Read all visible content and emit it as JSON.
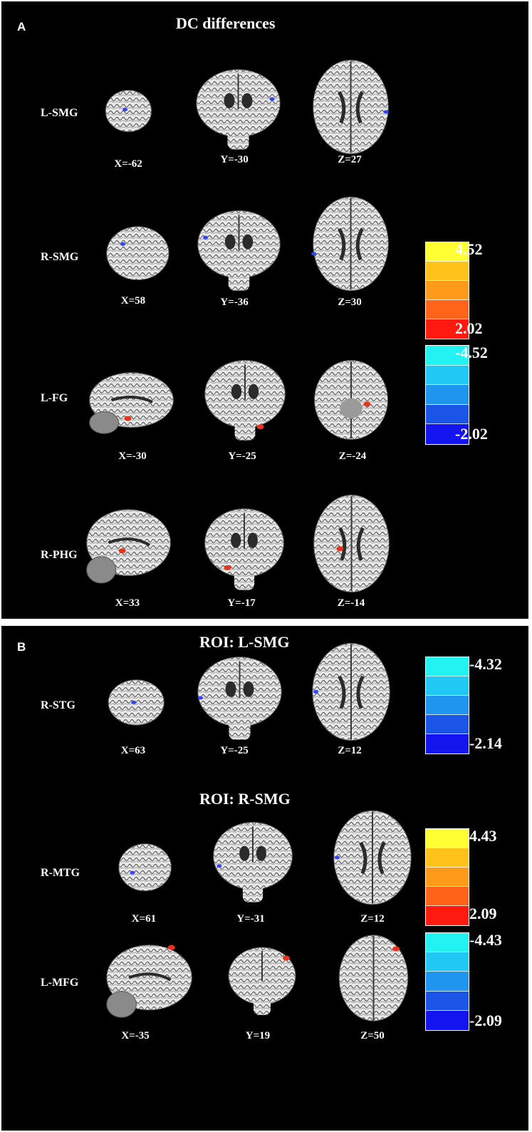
{
  "panelA": {
    "letter": "A",
    "title": "DC differences",
    "rows": [
      {
        "label": "L-SMG",
        "coords": [
          "X=-62",
          "Y=-30",
          "Z=27"
        ]
      },
      {
        "label": "R-SMG",
        "coords": [
          "X=58",
          "Y=-36",
          "Z=30"
        ]
      },
      {
        "label": "L-FG",
        "coords": [
          "X=-30",
          "Y=-25",
          "Z=-24"
        ]
      },
      {
        "label": "R-PHG",
        "coords": [
          "X=33",
          "Y=-17",
          "Z=-14"
        ]
      }
    ],
    "colorbar_pos": {
      "max": "4.52",
      "min": "2.02"
    },
    "colorbar_neg": {
      "max": "-4.52",
      "min": "-2.02"
    }
  },
  "panelB": {
    "letter": "B",
    "title1": "ROI: L-SMG",
    "title2": "ROI: R-SMG",
    "rows": [
      {
        "label": "R-STG",
        "coords": [
          "X=63",
          "Y=-25",
          "Z=12"
        ]
      },
      {
        "label": "R-MTG",
        "coords": [
          "X=61",
          "Y=-31",
          "Z=12"
        ]
      },
      {
        "label": "L-MFG",
        "coords": [
          "X=-35",
          "Y=19",
          "Z=50"
        ]
      }
    ],
    "colorbar1_neg": {
      "max": "-4.32",
      "min": "-2.14"
    },
    "colorbar2_pos": {
      "max": "4.43",
      "min": "2.09"
    },
    "colorbar2_neg": {
      "max": "-4.43",
      "min": "-2.09"
    }
  },
  "colors": {
    "hot": [
      "#ffff33",
      "#ffc21a",
      "#ff9a1a",
      "#ff6418",
      "#ff1a10"
    ],
    "cold": [
      "#22f2f2",
      "#22c8f4",
      "#1f95ef",
      "#1a55e8",
      "#1414ee"
    ],
    "activation_red": "#e8341a",
    "activation_blue": "#3344ff"
  }
}
